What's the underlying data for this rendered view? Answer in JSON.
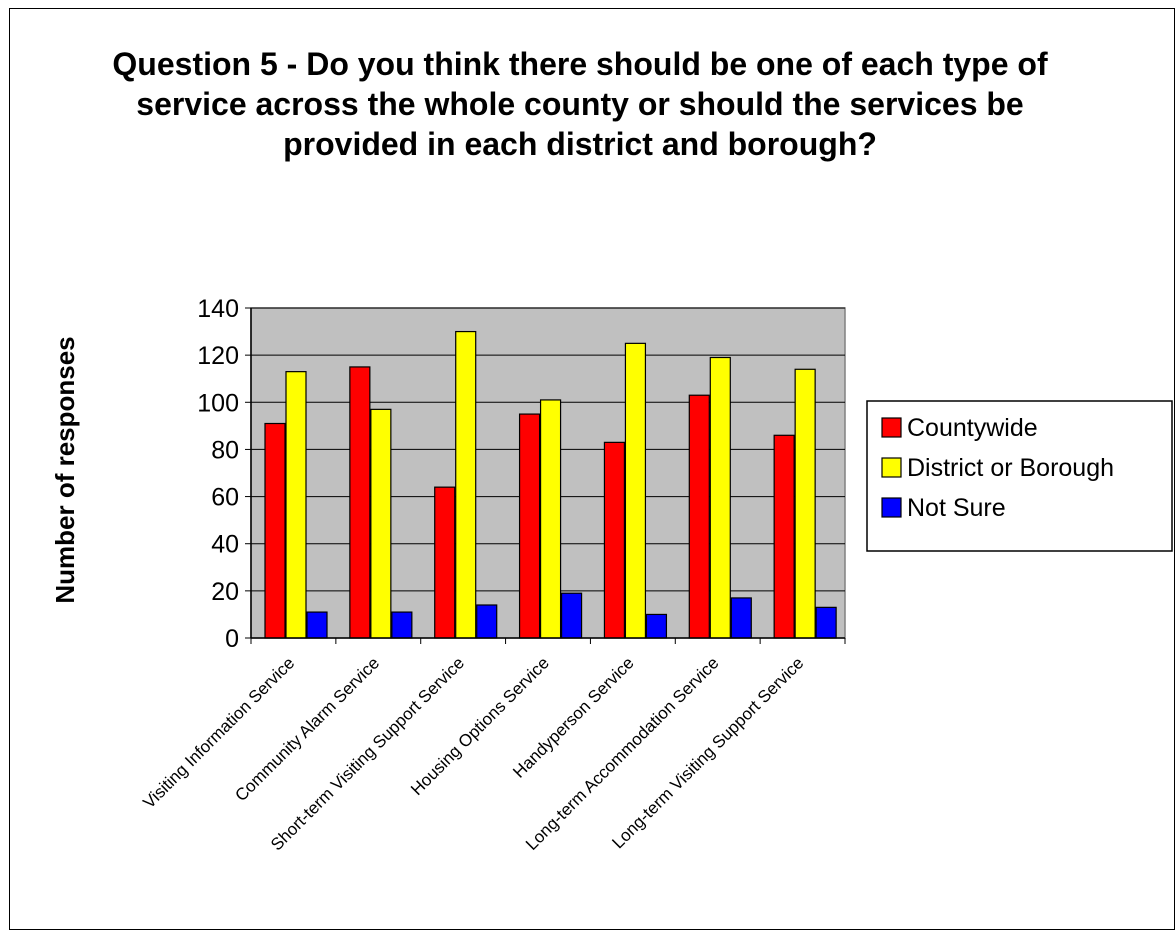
{
  "chart_data": {
    "type": "bar",
    "title": "Question 5 - Do you think there should be one of each type of service across the whole county or should the services be provided in each district and borough?",
    "xlabel": "",
    "ylabel": "Number of responses",
    "ylim": [
      0,
      140
    ],
    "yticks": [
      0,
      20,
      40,
      60,
      80,
      100,
      120,
      140
    ],
    "grid": true,
    "legend_position": "right",
    "categories": [
      "Visiting Information Service",
      "Community Alarm Service",
      "Short-term Visiting Support Service",
      "Housing Options Service",
      "Handyperson Service",
      "Long-term Accommodation Service",
      "Long-term Visiting Support Service"
    ],
    "series": [
      {
        "name": "Countywide",
        "color": "#ff0000",
        "values": [
          91,
          115,
          64,
          95,
          83,
          103,
          86
        ]
      },
      {
        "name": "District or Borough",
        "color": "#ffff00",
        "values": [
          113,
          97,
          130,
          101,
          125,
          119,
          114
        ]
      },
      {
        "name": "Not Sure",
        "color": "#0000ff",
        "values": [
          11,
          11,
          14,
          19,
          10,
          17,
          13
        ]
      }
    ],
    "plot_background": "#c0c0c0"
  }
}
